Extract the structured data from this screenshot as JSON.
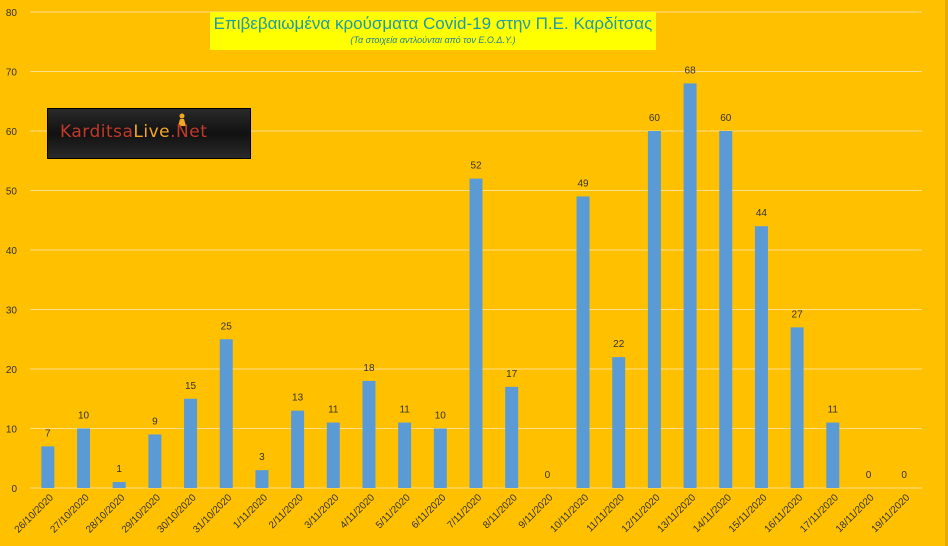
{
  "header": {
    "title": "Επιβεβαιωμένα κρούσματα Covid-19 στην Π.Ε. Καρδίτσας",
    "subtitle": "(Τα στοιχεία αντλούνται από τον Ε.Ο.Δ.Υ.)"
  },
  "logo": {
    "part_a": "Karditsa",
    "part_b": "Live",
    "part_c": ".Net",
    "icon": "person-figure-icon"
  },
  "colors": {
    "background": "#ffc000",
    "bar": "#5b9bd5",
    "gridline": "#ffe08a",
    "text": "#333333",
    "title_box": "#ffff00",
    "title_text": "#1f9aa8"
  },
  "chart_data": {
    "type": "bar",
    "title": "Επιβεβαιωμένα κρούσματα Covid-19 στην Π.Ε. Καρδίτσας",
    "subtitle": "(Τα στοιχεία αντλούνται από τον Ε.Ο.Δ.Υ.)",
    "xlabel": "",
    "ylabel": "",
    "ylim": [
      0,
      80
    ],
    "yticks": [
      0,
      10,
      20,
      30,
      40,
      50,
      60,
      70,
      80
    ],
    "grid": true,
    "legend": "none",
    "data_labels": true,
    "categories": [
      "26/10/2020",
      "27/10/2020",
      "28/10/2020",
      "29/10/2020",
      "30/10/2020",
      "31/10/2020",
      "1/11/2020",
      "2/11/2020",
      "3/11/2020",
      "4/11/2020",
      "5/11/2020",
      "6/11/2020",
      "7/11/2020",
      "8/11/2020",
      "9/11/2020",
      "10/11/2020",
      "11/11/2020",
      "12/11/2020",
      "13/11/2020",
      "14/11/2020",
      "15/11/2020",
      "16/11/2020",
      "17/11/2020",
      "18/11/2020",
      "19/11/2020"
    ],
    "values": [
      7,
      10,
      1,
      9,
      15,
      25,
      3,
      13,
      11,
      18,
      11,
      10,
      52,
      17,
      0,
      49,
      22,
      60,
      68,
      60,
      44,
      27,
      11,
      0,
      0
    ]
  }
}
